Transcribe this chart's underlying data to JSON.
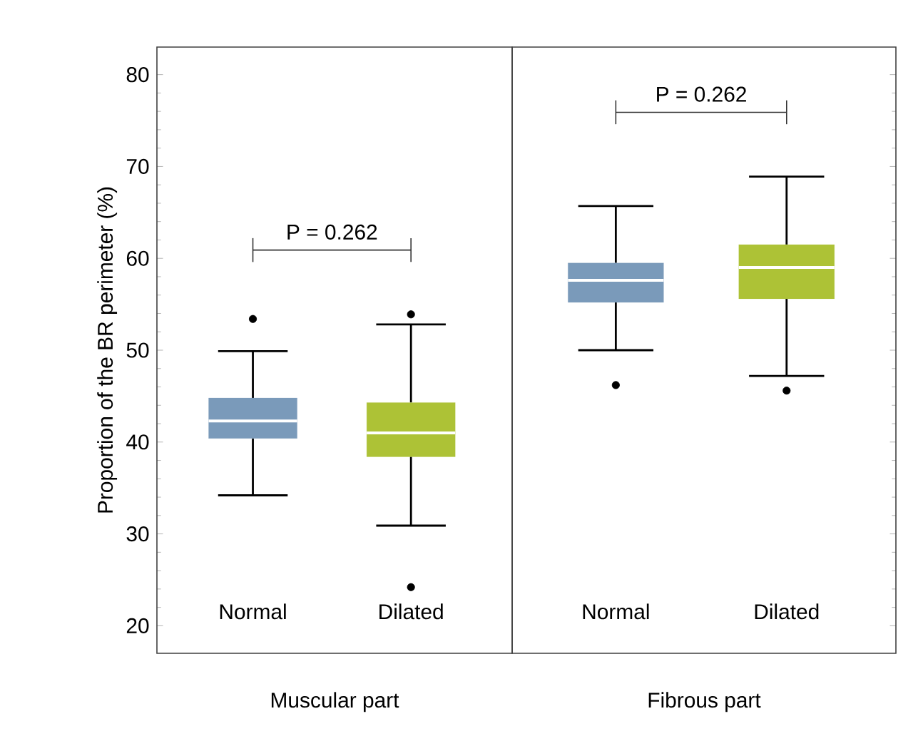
{
  "chart_data": [
    {
      "type": "box",
      "xlabel": "Muscular part",
      "ylabel": "Proportion of the BR perimeter (%)",
      "categories": [
        "Normal",
        "Dilated"
      ],
      "colors": [
        "#7a9aba",
        "#adc236"
      ],
      "boxes": [
        {
          "low": 34.2,
          "q1": 40.4,
          "median": 42.3,
          "q3": 44.8,
          "high": 49.9,
          "outliers": [
            53.4
          ]
        },
        {
          "low": 30.9,
          "q1": 38.4,
          "median": 41.0,
          "q3": 44.3,
          "high": 52.8,
          "outliers": [
            53.9,
            24.2
          ]
        }
      ],
      "ylim": [
        17,
        83
      ],
      "yticks": [
        20,
        30,
        40,
        50,
        60,
        70,
        80
      ],
      "annotations": [
        "P = 0.262"
      ]
    },
    {
      "type": "box",
      "xlabel": "Fibrous part",
      "categories": [
        "Normal",
        "Dilated"
      ],
      "colors": [
        "#7a9aba",
        "#adc236"
      ],
      "boxes": [
        {
          "low": 50.0,
          "q1": 55.2,
          "median": 57.6,
          "q3": 59.5,
          "high": 65.7,
          "outliers": [
            46.2
          ]
        },
        {
          "low": 47.2,
          "q1": 55.6,
          "median": 59.0,
          "q3": 61.5,
          "high": 68.9,
          "outliers": [
            45.6
          ]
        }
      ],
      "ylim": [
        17,
        83
      ],
      "yticks": [
        20,
        30,
        40,
        50,
        60,
        70,
        80
      ],
      "tick_labels": "x",
      "annotations": [
        "P = 0.262"
      ]
    }
  ]
}
